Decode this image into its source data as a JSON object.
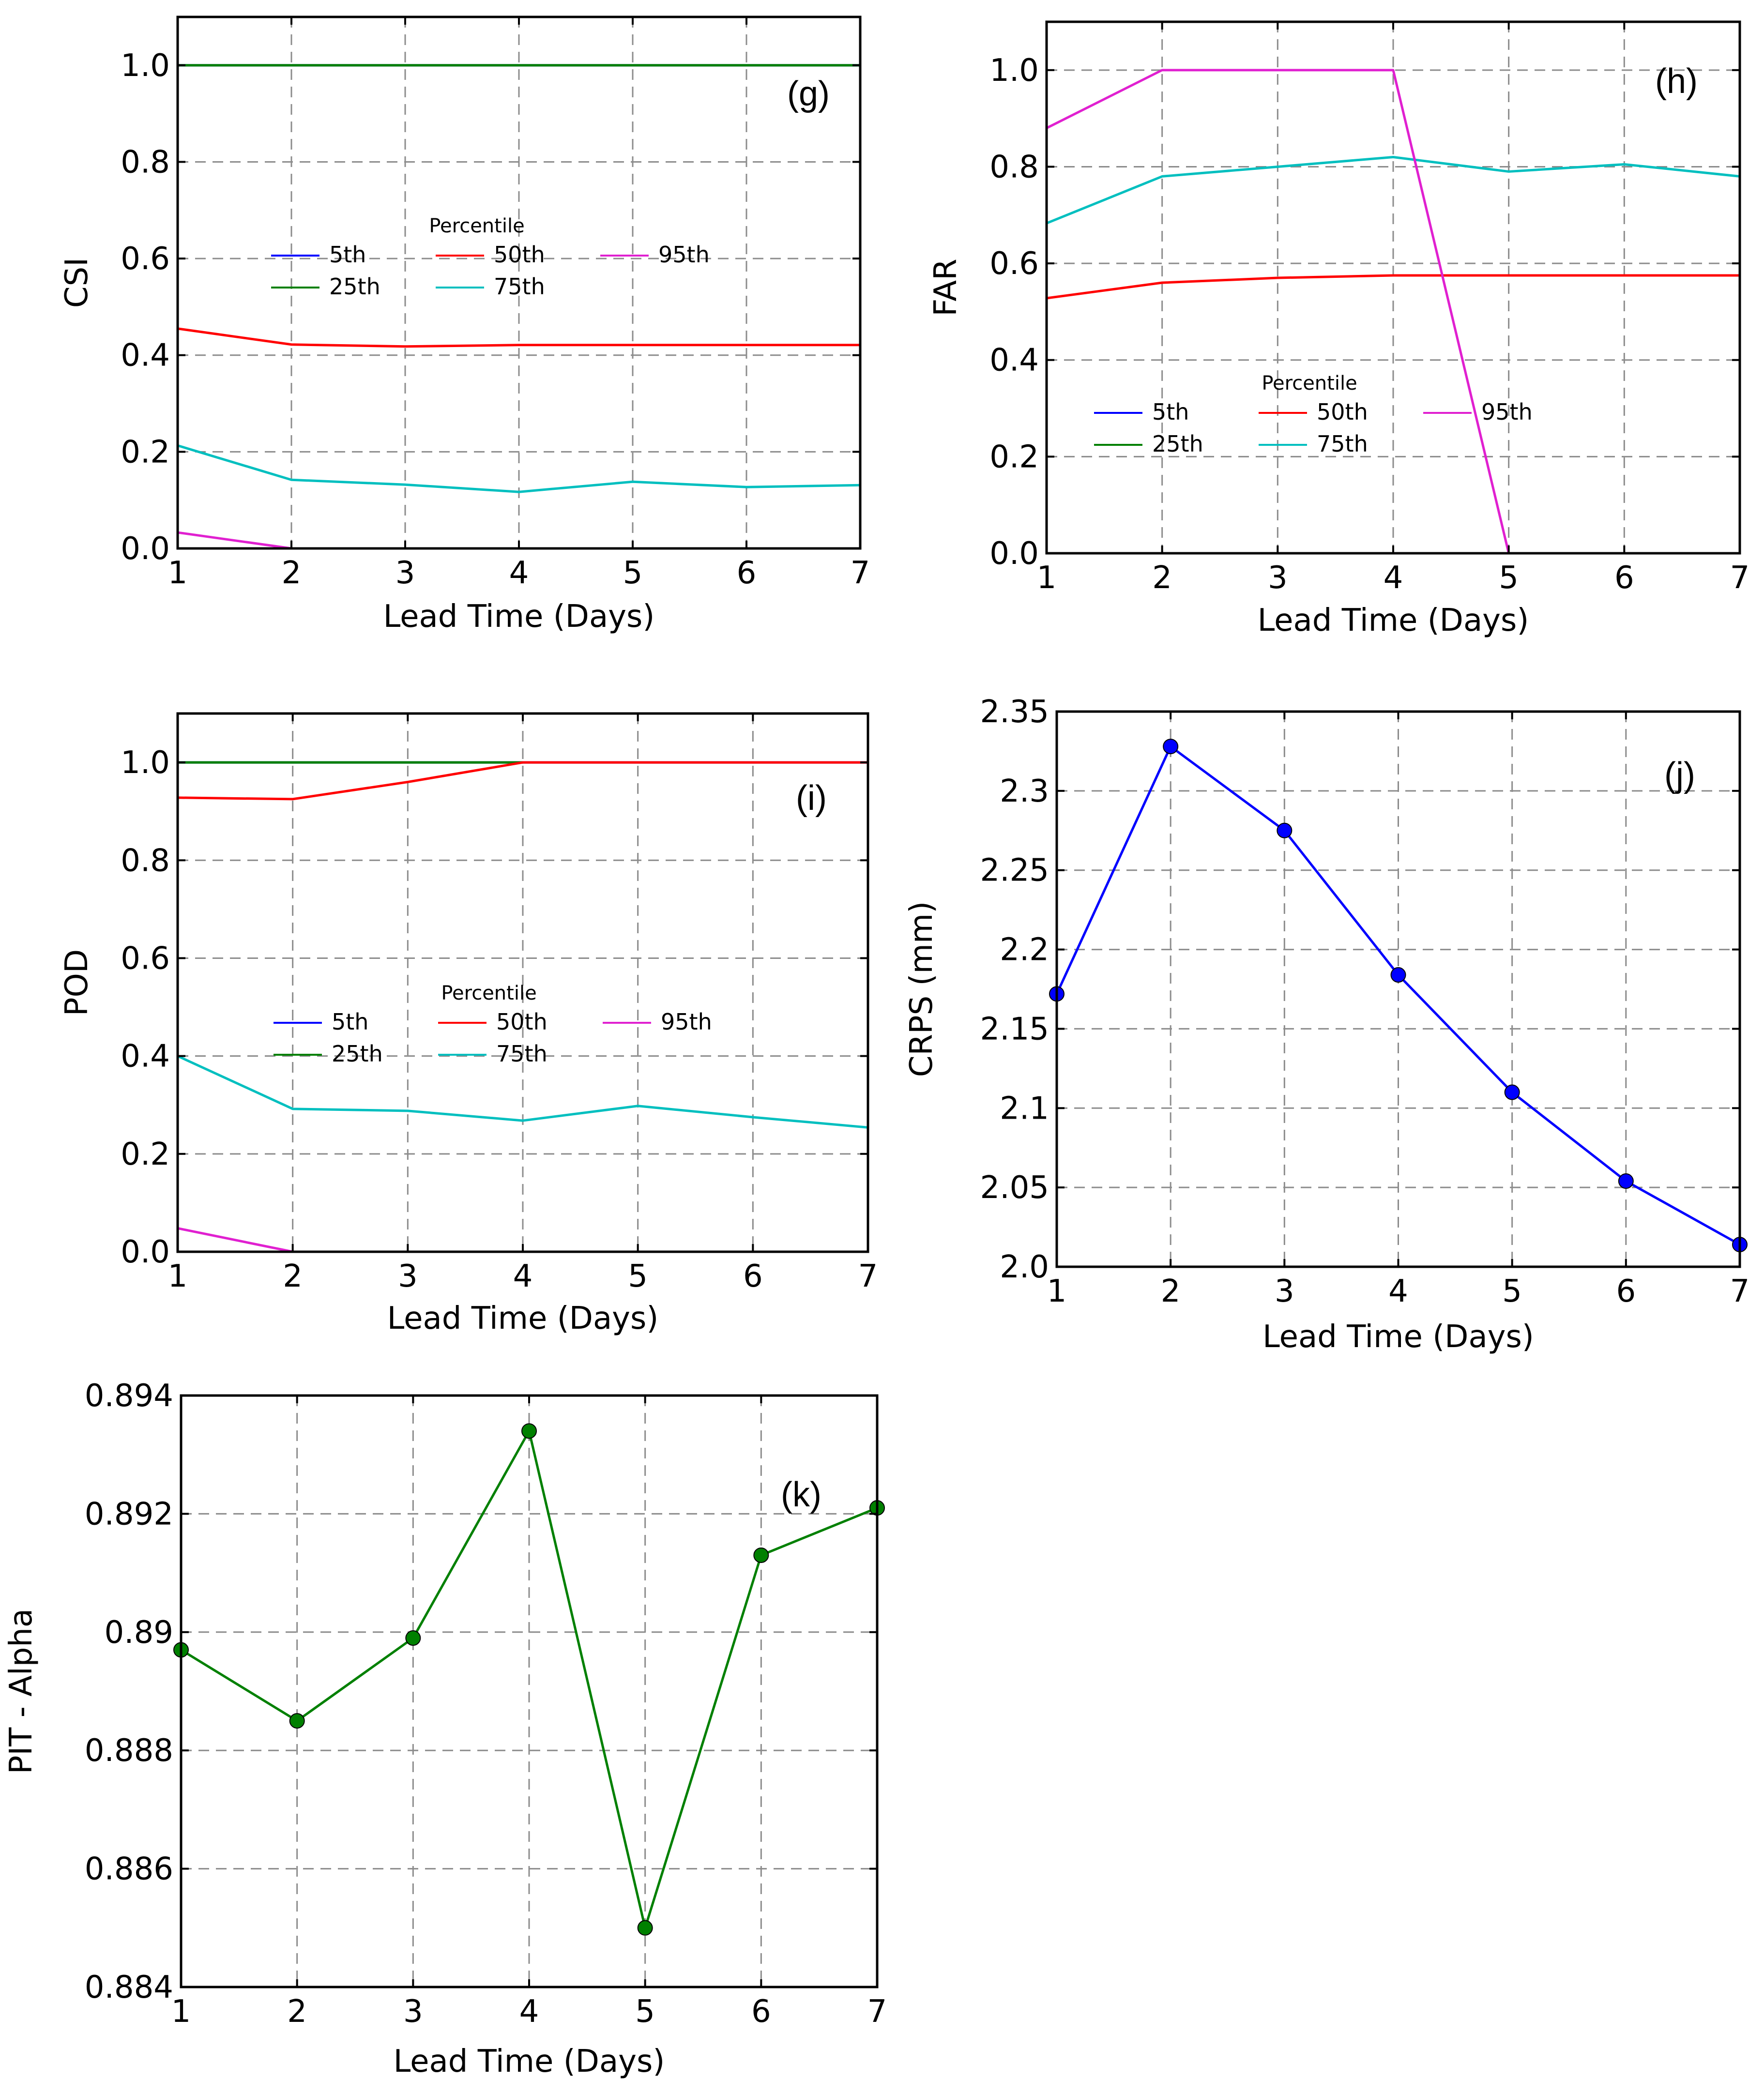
{
  "chart_data": [
    {
      "id": "g",
      "type": "line",
      "panel_label": "(g)",
      "ylabel": "CSI",
      "xlabel": "Lead Time (Days)",
      "xlim": [
        1,
        7
      ],
      "ylim": [
        0,
        1.1
      ],
      "xticks": [
        "1",
        "2",
        "3",
        "4",
        "5",
        "6",
        "7"
      ],
      "yticks": [
        "0.0",
        "0.2",
        "0.4",
        "0.6",
        "0.8",
        "1.0"
      ],
      "grid": true,
      "x": [
        1,
        2,
        3,
        4,
        5,
        6,
        7
      ],
      "legend": {
        "title": "Percentile",
        "position": "center-left",
        "entries": [
          "5th",
          "25th",
          "50th",
          "75th",
          "95th"
        ]
      },
      "series": [
        {
          "name": "5th",
          "color": "#0000ff",
          "values": [
            1.0,
            1.0,
            1.0,
            1.0,
            1.0,
            1.0,
            1.0
          ]
        },
        {
          "name": "25th",
          "color": "#008000",
          "values": [
            1.0,
            1.0,
            1.0,
            1.0,
            1.0,
            1.0,
            1.0
          ]
        },
        {
          "name": "50th",
          "color": "#ff0000",
          "values": [
            0.455,
            0.422,
            0.418,
            0.421,
            0.421,
            0.421,
            0.421
          ]
        },
        {
          "name": "75th",
          "color": "#00bfbf",
          "values": [
            0.213,
            0.142,
            0.132,
            0.117,
            0.138,
            0.127,
            0.131
          ]
        },
        {
          "name": "95th",
          "color": "#e020d0",
          "values": [
            0.033,
            0.0,
            null,
            null,
            null,
            null,
            null
          ]
        }
      ]
    },
    {
      "id": "h",
      "type": "line",
      "panel_label": "(h)",
      "ylabel": "FAR",
      "xlabel": "Lead Time (Days)",
      "xlim": [
        1,
        7
      ],
      "ylim": [
        0,
        1.1
      ],
      "xticks": [
        "1",
        "2",
        "3",
        "4",
        "5",
        "6",
        "7"
      ],
      "yticks": [
        "0.0",
        "0.2",
        "0.4",
        "0.6",
        "0.8",
        "1.0"
      ],
      "grid": true,
      "x": [
        1,
        2,
        3,
        4,
        5,
        6,
        7
      ],
      "legend": {
        "title": "Percentile",
        "position": "lower-center",
        "entries": [
          "5th",
          "25th",
          "50th",
          "75th",
          "95th"
        ]
      },
      "series": [
        {
          "name": "5th",
          "color": "#0000ff",
          "values": [
            null,
            null,
            null,
            null,
            null,
            null,
            null
          ]
        },
        {
          "name": "25th",
          "color": "#008000",
          "values": [
            null,
            null,
            null,
            null,
            null,
            null,
            null
          ]
        },
        {
          "name": "50th",
          "color": "#ff0000",
          "values": [
            0.528,
            0.56,
            0.57,
            0.575,
            0.575,
            0.575,
            0.575
          ]
        },
        {
          "name": "75th",
          "color": "#00bfbf",
          "values": [
            0.683,
            0.78,
            0.8,
            0.82,
            0.79,
            0.805,
            0.78
          ]
        },
        {
          "name": "95th",
          "color": "#e020d0",
          "values": [
            0.88,
            1.0,
            1.0,
            1.0,
            0.0,
            null,
            null
          ]
        }
      ]
    },
    {
      "id": "i",
      "type": "line",
      "panel_label": "(i)",
      "ylabel": "POD",
      "xlabel": "Lead Time (Days)",
      "xlim": [
        1,
        7
      ],
      "ylim": [
        0,
        1.1
      ],
      "xticks": [
        "1",
        "2",
        "3",
        "4",
        "5",
        "6",
        "7"
      ],
      "yticks": [
        "0.0",
        "0.2",
        "0.4",
        "0.6",
        "0.8",
        "1.0"
      ],
      "grid": true,
      "x": [
        1,
        2,
        3,
        4,
        5,
        6,
        7
      ],
      "legend": {
        "title": "Percentile",
        "position": "center",
        "entries": [
          "5th",
          "25th",
          "50th",
          "75th",
          "95th"
        ]
      },
      "series": [
        {
          "name": "5th",
          "color": "#0000ff",
          "values": [
            1.0,
            1.0,
            1.0,
            1.0,
            1.0,
            1.0,
            1.0
          ]
        },
        {
          "name": "25th",
          "color": "#008000",
          "values": [
            1.0,
            1.0,
            1.0,
            1.0,
            null,
            null,
            null
          ]
        },
        {
          "name": "50th",
          "color": "#ff0000",
          "values": [
            0.928,
            0.925,
            0.96,
            1.0,
            1.0,
            1.0,
            1.0
          ]
        },
        {
          "name": "75th",
          "color": "#00bfbf",
          "values": [
            0.4,
            0.292,
            0.288,
            0.268,
            0.298,
            0.275,
            0.254
          ]
        },
        {
          "name": "95th",
          "color": "#e020d0",
          "values": [
            0.048,
            0.0,
            null,
            null,
            null,
            null,
            null
          ]
        }
      ]
    },
    {
      "id": "j",
      "type": "line",
      "panel_label": "(j)",
      "ylabel": "CRPS (mm)",
      "xlabel": "Lead Time (Days)",
      "xlim": [
        1,
        7
      ],
      "ylim": [
        2.0,
        2.35
      ],
      "xticks": [
        "1",
        "2",
        "3",
        "4",
        "5",
        "6",
        "7"
      ],
      "yticks": [
        "2.0",
        "2.05",
        "2.1",
        "2.15",
        "2.2",
        "2.25",
        "2.3",
        "2.35"
      ],
      "grid": true,
      "x": [
        1,
        2,
        3,
        4,
        5,
        6,
        7
      ],
      "series": [
        {
          "name": "CRPS",
          "color": "#0000ff",
          "marker": true,
          "values": [
            2.172,
            2.328,
            2.275,
            2.184,
            2.11,
            2.054,
            2.014
          ]
        }
      ]
    },
    {
      "id": "k",
      "type": "line",
      "panel_label": "(k)",
      "ylabel": "PIT - Alpha",
      "xlabel": "Lead Time (Days)",
      "xlim": [
        1,
        7
      ],
      "ylim": [
        0.884,
        0.894
      ],
      "xticks": [
        "1",
        "2",
        "3",
        "4",
        "5",
        "6",
        "7"
      ],
      "yticks": [
        "0.884",
        "0.886",
        "0.888",
        "0.89",
        "0.892",
        "0.894"
      ],
      "grid": true,
      "x": [
        1,
        2,
        3,
        4,
        5,
        6,
        7
      ],
      "series": [
        {
          "name": "PIT - Alpha",
          "color": "#008000",
          "marker": true,
          "values": [
            0.8897,
            0.8885,
            0.8899,
            0.8934,
            0.885,
            0.8913,
            0.8921
          ]
        }
      ]
    }
  ]
}
